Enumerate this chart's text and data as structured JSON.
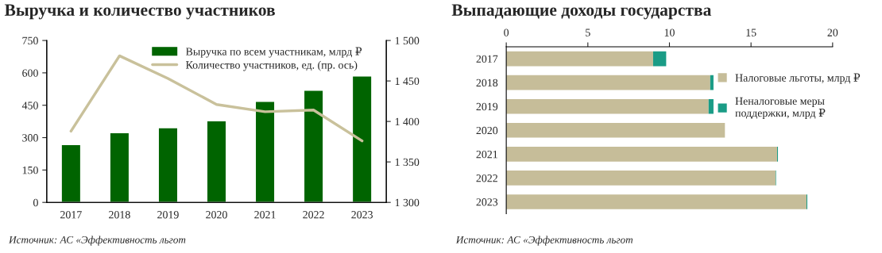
{
  "chart_data": [
    {
      "type": "bar",
      "title": "Выручка и количество участников",
      "categories": [
        "2017",
        "2018",
        "2019",
        "2020",
        "2021",
        "2022",
        "2023"
      ],
      "series": [
        {
          "name": "Выручка по всем участникам, млрд ₽",
          "color": "#006400",
          "values": [
            268,
            323,
            346,
            378,
            468,
            519,
            586
          ]
        },
        {
          "name": "Количество участников, ед. (пр. ось)",
          "type": "line",
          "axis": "y2",
          "color": "#c9c19b",
          "values": [
            1388,
            1481,
            1453,
            1421,
            1412,
            1414,
            1376
          ]
        }
      ],
      "ylim": [
        0,
        750
      ],
      "yticks": [
        0,
        150,
        300,
        450,
        600,
        750
      ],
      "y2lim": [
        1300,
        1500
      ],
      "y2ticks": [
        {
          "value": 1300,
          "label": "1 300"
        },
        {
          "value": 1350,
          "label": "1 350"
        },
        {
          "value": 1400,
          "label": "1 400"
        },
        {
          "value": 1450,
          "label": "1 450"
        },
        {
          "value": 1500,
          "label": "1 500"
        }
      ],
      "legend": "top",
      "grid": false,
      "line_style": "solid",
      "annotations": [
        "Источник: АС «Эффективность льгот"
      ]
    },
    {
      "type": "bar",
      "title": "Выпадающие доходы государства",
      "orientation": "horizontal",
      "stacked": true,
      "categories": [
        "2017",
        "2018",
        "2019",
        "2020",
        "2021",
        "2022",
        "2023"
      ],
      "series": [
        {
          "name": "Налоговые льготы, млрд ₽",
          "color": "#c6bd99",
          "values": [
            9.0,
            12.5,
            12.4,
            13.4,
            16.6,
            16.5,
            18.4
          ]
        },
        {
          "name": "Неналоговые меры\nподдержки, млрд ₽",
          "color": "#1a9c86",
          "values": [
            0.8,
            0.2,
            0.3,
            null,
            0.05,
            0.03,
            0.05
          ]
        }
      ],
      "xlim": [
        0,
        20
      ],
      "xticks": [
        0,
        5,
        10,
        15,
        20
      ],
      "legend": "right",
      "grid": false,
      "annotations": [
        "Источник: АС «Эффективность льгот"
      ]
    }
  ]
}
